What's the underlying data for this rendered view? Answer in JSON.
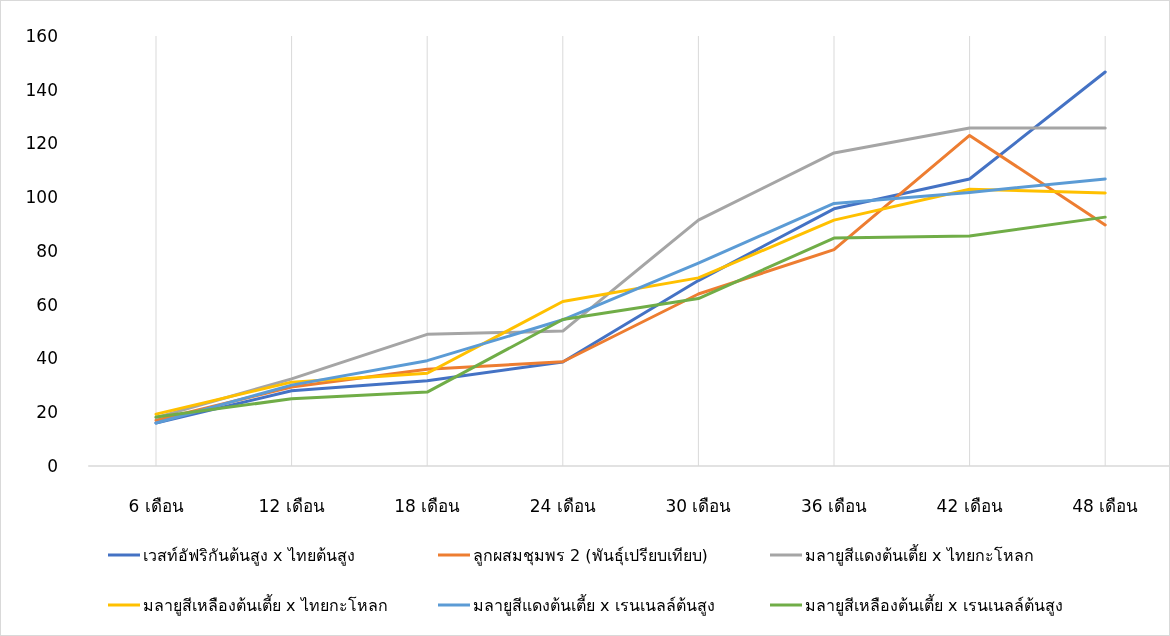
{
  "chart_data": {
    "type": "line",
    "categories": [
      "6 เดือน",
      "12 เดือน",
      "18 เดือน",
      "24 เดือน",
      "30 เดือน",
      "36 เดือน",
      "42 เดือน",
      "48 เดือน"
    ],
    "ylim": [
      0,
      160
    ],
    "yticks": [
      0,
      20,
      40,
      60,
      80,
      100,
      120,
      140,
      160
    ],
    "grid": "x",
    "legend": "bottom",
    "line_style": "solid",
    "marker": "none",
    "series": [
      {
        "name": "เวสท์อัฟริกันต้นสูง x ไทยต้นสูง",
        "color": "#4472c4",
        "values": [
          16,
          28,
          31.7,
          38.7,
          69,
          95.7,
          106.8,
          146.6
        ]
      },
      {
        "name": "ลูกผสมชุมพร 2 (พันธุ์เปรียบเทียบ)",
        "color": "#ed7d31",
        "values": [
          17,
          29.4,
          36,
          38.8,
          64,
          80.5,
          123,
          89.7
        ]
      },
      {
        "name": "มลายูสีแดงต้นเตี้ย x ไทยกะโหลก",
        "color": "#a5a5a5",
        "values": [
          18,
          32.4,
          49,
          50.2,
          91.5,
          116.5,
          125.8,
          125.8
        ]
      },
      {
        "name": "มลายูสีเหลืองต้นเตี้ย x ไทยกะโหลก",
        "color": "#ffc000",
        "values": [
          19.3,
          31.2,
          34.5,
          61.2,
          70,
          91.5,
          103,
          101.6
        ]
      },
      {
        "name": "มลายูสีแดงต้นเตี้ย x เรนเนลล์ต้นสูง",
        "color": "#5b9bd5",
        "values": [
          16,
          30.1,
          39.2,
          54.4,
          75.5,
          97.7,
          101.8,
          106.8
        ]
      },
      {
        "name": "มลายูสีเหลืองต้นเตี้ย x เรนเนลล์ต้นสูง",
        "color": "#70ad47",
        "values": [
          18.2,
          25,
          27.5,
          54.5,
          62.3,
          84.8,
          85.6,
          92.6
        ]
      }
    ]
  }
}
